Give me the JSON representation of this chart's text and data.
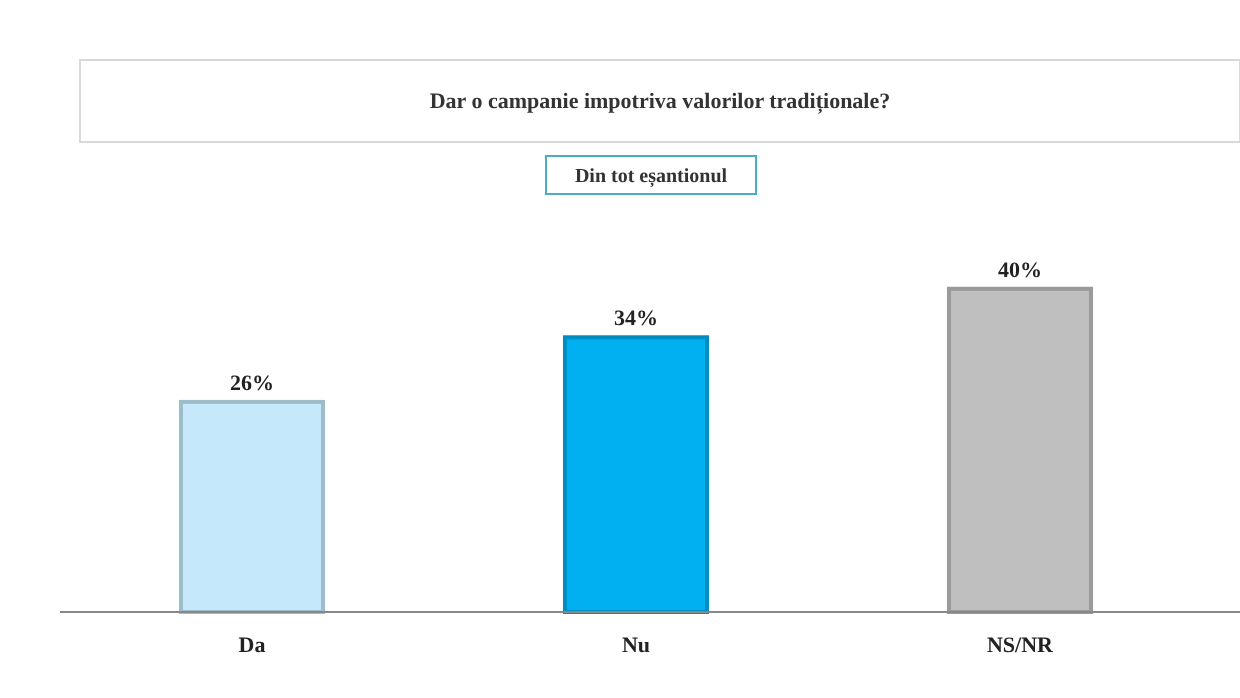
{
  "chart_data": {
    "type": "bar",
    "title": "Dar o campanie impotriva valorilor tradiționale?",
    "subtitle": "Din tot eșantionul",
    "categories": [
      "Da",
      "Nu",
      "NS/NR"
    ],
    "values": [
      26,
      34,
      40
    ],
    "colors": [
      "#c5e9fb",
      "#00b0f0",
      "#bfbfbf"
    ],
    "value_labels": [
      "26%",
      "34%",
      "40%"
    ]
  }
}
